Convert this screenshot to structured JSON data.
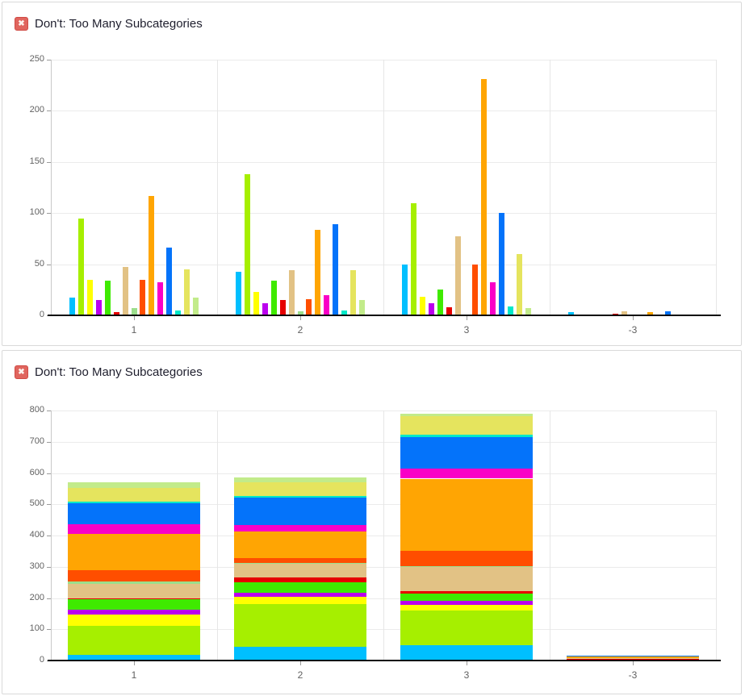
{
  "panels": [
    {
      "title": "Don't: Too Many Subcategories",
      "icon_glyph": "✖"
    },
    {
      "title": "Don't: Too Many Subcategories",
      "icon_glyph": "✖"
    }
  ],
  "chart_data": [
    {
      "type": "bar",
      "mode": "grouped",
      "title": "Don't: Too Many Subcategories",
      "categories": [
        "1",
        "2",
        "3",
        "-3"
      ],
      "ylim": [
        0,
        250
      ],
      "yticks": [
        0,
        50,
        100,
        150,
        200,
        250
      ],
      "grid": true,
      "legend": "none",
      "series": [
        {
          "name": "cyan",
          "color": "#00BFFF",
          "values": [
            17,
            43,
            50,
            3
          ]
        },
        {
          "name": "chartreuse",
          "color": "#A6EF00",
          "values": [
            95,
            138,
            110,
            0
          ]
        },
        {
          "name": "yellow",
          "color": "#FFFF00",
          "values": [
            35,
            23,
            18,
            0
          ]
        },
        {
          "name": "violet",
          "color": "#BB00EE",
          "values": [
            15,
            12,
            12,
            0
          ]
        },
        {
          "name": "green",
          "color": "#3FEA00",
          "values": [
            34,
            34,
            25,
            0
          ]
        },
        {
          "name": "red",
          "color": "#E60000",
          "values": [
            3,
            15,
            8,
            2
          ]
        },
        {
          "name": "tan",
          "color": "#E2C285",
          "values": [
            47,
            44,
            77,
            4
          ]
        },
        {
          "name": "pale-green",
          "color": "#9CDE8C",
          "values": [
            7,
            4,
            1,
            0
          ]
        },
        {
          "name": "orange-red",
          "color": "#FF4E00",
          "values": [
            35,
            16,
            50,
            0
          ]
        },
        {
          "name": "orange",
          "color": "#FFA503",
          "values": [
            117,
            84,
            231,
            3
          ]
        },
        {
          "name": "magenta",
          "color": "#F900C7",
          "values": [
            32,
            20,
            32,
            0
          ]
        },
        {
          "name": "blue",
          "color": "#0473FA",
          "values": [
            66,
            89,
            100,
            4
          ]
        },
        {
          "name": "turquoise",
          "color": "#00E8C8",
          "values": [
            5,
            5,
            9,
            0
          ]
        },
        {
          "name": "khaki",
          "color": "#E5E45E",
          "values": [
            45,
            44,
            60,
            0
          ]
        },
        {
          "name": "pale-yellowgreen",
          "color": "#C2EB8A",
          "values": [
            17,
            15,
            7,
            0
          ]
        }
      ]
    },
    {
      "type": "bar",
      "mode": "stacked",
      "title": "Don't: Too Many Subcategories",
      "categories": [
        "1",
        "2",
        "3",
        "-3"
      ],
      "ylim": [
        0,
        800
      ],
      "yticks": [
        0,
        100,
        200,
        300,
        400,
        500,
        600,
        700,
        800
      ],
      "grid": true,
      "legend": "none",
      "series": [
        {
          "name": "cyan",
          "color": "#00BFFF",
          "values": [
            17,
            43,
            50,
            3
          ]
        },
        {
          "name": "chartreuse",
          "color": "#A6EF00",
          "values": [
            95,
            138,
            110,
            0
          ]
        },
        {
          "name": "yellow",
          "color": "#FFFF00",
          "values": [
            35,
            23,
            18,
            0
          ]
        },
        {
          "name": "violet",
          "color": "#BB00EE",
          "values": [
            15,
            12,
            12,
            0
          ]
        },
        {
          "name": "green",
          "color": "#3FEA00",
          "values": [
            34,
            34,
            25,
            0
          ]
        },
        {
          "name": "red",
          "color": "#E60000",
          "values": [
            3,
            15,
            8,
            2
          ]
        },
        {
          "name": "tan",
          "color": "#E2C285",
          "values": [
            47,
            44,
            77,
            4
          ]
        },
        {
          "name": "pale-green",
          "color": "#9CDE8C",
          "values": [
            7,
            4,
            1,
            0
          ]
        },
        {
          "name": "orange-red",
          "color": "#FF4E00",
          "values": [
            35,
            16,
            50,
            0
          ]
        },
        {
          "name": "orange",
          "color": "#FFA503",
          "values": [
            117,
            84,
            231,
            3
          ]
        },
        {
          "name": "magenta",
          "color": "#F900C7",
          "values": [
            32,
            20,
            32,
            0
          ]
        },
        {
          "name": "blue",
          "color": "#0473FA",
          "values": [
            66,
            89,
            100,
            4
          ]
        },
        {
          "name": "turquoise",
          "color": "#00E8C8",
          "values": [
            5,
            5,
            9,
            0
          ]
        },
        {
          "name": "khaki",
          "color": "#E5E45E",
          "values": [
            45,
            44,
            60,
            0
          ]
        },
        {
          "name": "pale-yellowgreen",
          "color": "#C2EB8A",
          "values": [
            17,
            15,
            7,
            0
          ]
        }
      ]
    }
  ]
}
